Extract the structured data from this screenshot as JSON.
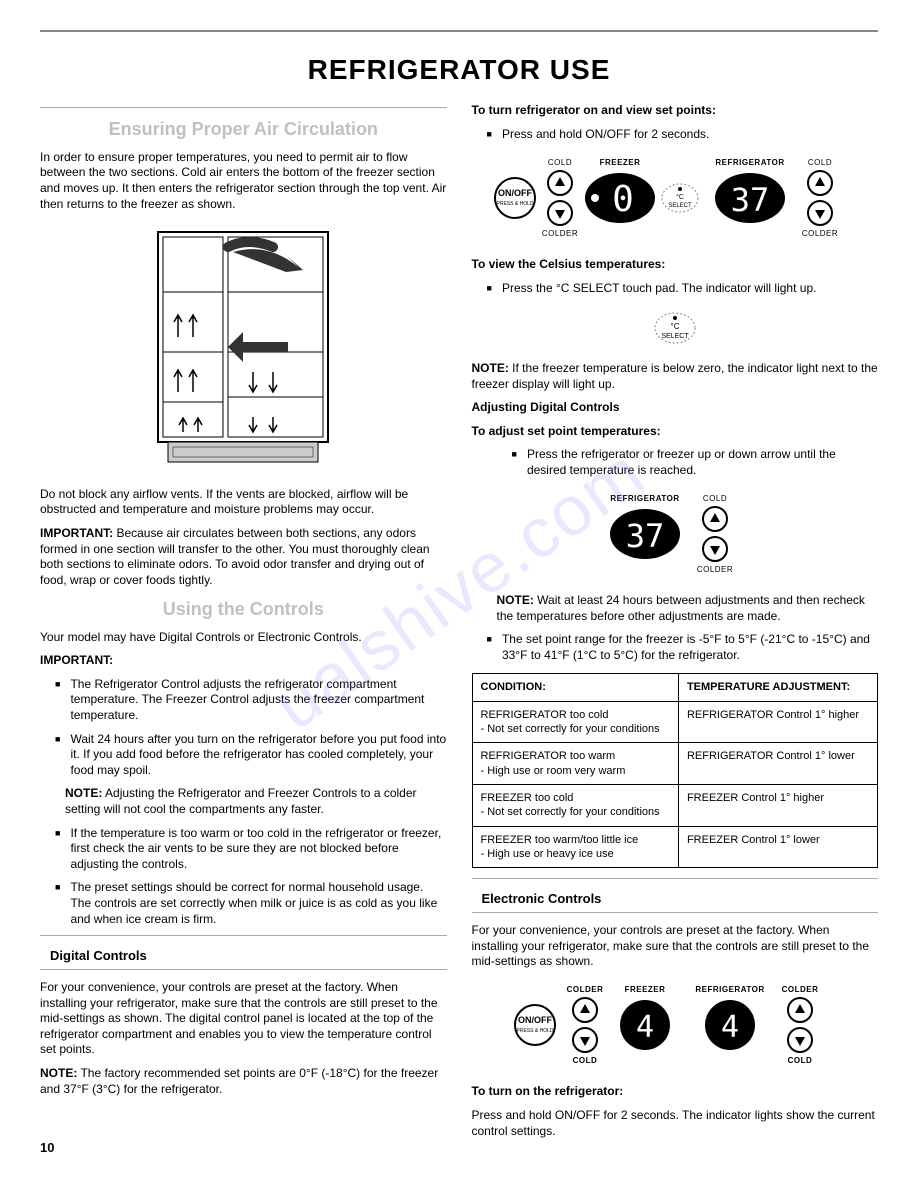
{
  "page_title": "REFRIGERATOR USE",
  "watermark": "ualshive.com",
  "page_number": "10",
  "left": {
    "h2_air": "Ensuring Proper Air Circulation",
    "air_p1": "In order to ensure proper temperatures, you need to permit air to flow between the two sections. Cold air enters the bottom of the freezer section and moves up. It then enters the refrigerator section through the top vent. Air then returns to the freezer as shown.",
    "air_p2": "Do not block any airflow vents. If the vents are blocked, airflow will be obstructed and temperature and moisture problems may occur.",
    "air_important_label": "IMPORTANT:",
    "air_important": " Because air circulates between both sections, any odors formed in one section will transfer to the other. You must thoroughly clean both sections to eliminate odors. To avoid odor transfer and drying out of food, wrap or cover foods tightly.",
    "h2_controls": "Using the Controls",
    "controls_p1": "Your model may have Digital Controls or Electronic Controls.",
    "important_label": "IMPORTANT:",
    "b1": "The Refrigerator Control adjusts the refrigerator compartment temperature. The Freezer Control adjusts the freezer compartment temperature.",
    "b2": "Wait 24 hours after you turn on the refrigerator before you put food into it. If you add food before the refrigerator has cooled completely, your food may spoil.",
    "b2_note_label": "NOTE:",
    "b2_note": " Adjusting the Refrigerator and Freezer Controls to a colder setting will not cool the compartments any faster.",
    "b3": "If the temperature is too warm or too cold in the refrigerator or freezer, first check the air vents to be sure they are not blocked before adjusting the controls.",
    "b4": "The preset settings should be correct for normal household usage. The controls are set correctly when milk or juice is as cold as you like and when ice cream is firm.",
    "digital_header": "Digital Controls",
    "digital_p1": "For your convenience, your controls are preset at the factory. When installing your refrigerator, make sure that the controls are still preset to the mid-settings as shown. The digital control panel is located at the top of the refrigerator compartment and enables you to view the temperature control set points.",
    "digital_note_label": "NOTE:",
    "digital_note": " The factory recommended set points are 0°F (-18°C) for the freezer and 37°F (3°C) for the refrigerator."
  },
  "right": {
    "turn_on_header": "To turn refrigerator on and view set points:",
    "turn_on_b1": "Press and hold ON/OFF for 2 seconds.",
    "celsius_header": "To view the Celsius temperatures:",
    "celsius_b1": "Press the °C SELECT touch pad. The indicator will light up.",
    "celsius_note_label": "NOTE:",
    "celsius_note": " If the freezer temperature is below zero, the indicator light next to the freezer display will light up.",
    "adjust_h": "Adjusting Digital Controls",
    "adjust_sub": "To adjust set point temperatures:",
    "adjust_b1": "Press the refrigerator or freezer up or down arrow until the desired temperature is reached.",
    "adjust_note_label": "NOTE:",
    "adjust_note": " Wait at least 24 hours between adjustments and then recheck the temperatures before other adjustments are made.",
    "range_b1": "The set point range for the freezer is -5°F to 5°F (-21°C to -15°C) and 33°F to 41°F (1°C to 5°C) for the refrigerator.",
    "table": {
      "h1": "CONDITION:",
      "h2": "TEMPERATURE ADJUSTMENT:",
      "rows": [
        {
          "c": "REFRIGERATOR too cold\n- Not set correctly for your conditions",
          "a": "REFRIGERATOR Control 1° higher"
        },
        {
          "c": "REFRIGERATOR too warm\n- High use or room very warm",
          "a": "REFRIGERATOR Control 1° lower"
        },
        {
          "c": "FREEZER too cold\n- Not set correctly for your conditions",
          "a": "FREEZER Control 1° higher"
        },
        {
          "c": "FREEZER too warm/too little ice\n- High use or heavy ice use",
          "a": "FREEZER Control 1° lower"
        }
      ]
    },
    "electronic_header": "Electronic Controls",
    "electronic_p1": "For your convenience, your controls are preset at the factory. When installing your refrigerator, make sure that the controls are still preset to the mid-settings as shown.",
    "turn_on2_header": "To turn on the refrigerator:",
    "turn_on2_p": "Press and hold ON/OFF for 2 seconds. The indicator lights show the current control settings.",
    "labels": {
      "cold": "COLD",
      "colder": "COLDER",
      "freezer": "FREEZER",
      "refrigerator": "REFRIGERATOR",
      "onoff": "ON/OFF",
      "press_hold": "PRESS & HOLD",
      "select": "SELECT",
      "c": "°C"
    },
    "display_values": {
      "freezer_digital": "0",
      "fridge_digital": "37",
      "freezer_elec": "4",
      "fridge_elec": "4"
    }
  }
}
